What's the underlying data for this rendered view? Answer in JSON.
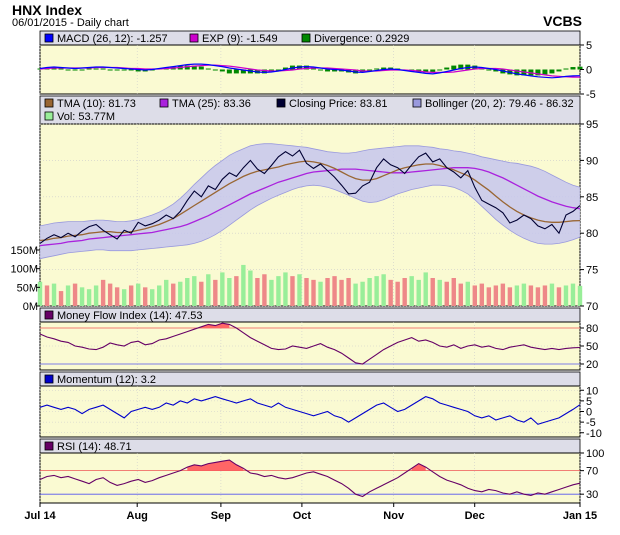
{
  "header": {
    "title": "HNX Index",
    "subtitle": "06/01/2015 - Daily chart",
    "source": "VCBS"
  },
  "colors": {
    "background": "#fafad2",
    "macd": "#0000ff",
    "exp": "#cc00cc",
    "divergence": "#008800",
    "tma10": "#996633",
    "tma25": "#aa22dd",
    "closing": "#000033",
    "bollinger_fill": "#c6c6ee",
    "bollinger_line": "#9999dd",
    "vol_up": "#99ee99",
    "vol_down": "#ee8888",
    "mfi": "#660066",
    "momentum": "#0000cc",
    "rsi": "#660066",
    "overbought_fill": "#ff6666",
    "oversold_fill": "#6666ff"
  },
  "chart_data": [
    {
      "type": "line",
      "id": "macd",
      "legend": [
        {
          "label": "MACD (26, 12): -1.257",
          "color": "#0000ff"
        },
        {
          "label": "EXP (9): -1.549",
          "color": "#cc00cc"
        },
        {
          "label": "Divergence: 0.2929",
          "color": "#008800"
        }
      ],
      "ylim": [
        -5,
        5
      ],
      "yticks": [
        "5",
        "0",
        "-5"
      ],
      "yticks_values": [
        5,
        0,
        -5
      ],
      "macd": [
        0.2,
        0.4,
        0.5,
        0.4,
        0.3,
        0.2,
        0.3,
        0.4,
        0.5,
        0.5,
        0.4,
        0.3,
        0.2,
        0.1,
        0.0,
        -0.1,
        0.0,
        0.2,
        0.4,
        0.6,
        0.8,
        1.0,
        1.1,
        1.1,
        1.0,
        0.8,
        0.6,
        0.3,
        0.1,
        -0.1,
        -0.3,
        -0.5,
        -0.6,
        -0.5,
        -0.3,
        0.0,
        0.3,
        0.5,
        0.6,
        0.5,
        0.3,
        0.1,
        0.0,
        -0.1,
        -0.3,
        -0.5,
        -0.6,
        -0.4,
        -0.2,
        0.0,
        0.1,
        0.0,
        -0.2,
        -0.4,
        -0.6,
        -0.8,
        -0.9,
        -0.7,
        -0.4,
        -0.1,
        0.2,
        0.4,
        0.5,
        0.4,
        0.2,
        0.0,
        -0.3,
        -0.6,
        -0.9,
        -1.1,
        -1.3,
        -1.5,
        -1.6,
        -1.7,
        -1.6,
        -1.4,
        -1.3,
        -1.26
      ],
      "exp": [
        0.1,
        0.2,
        0.3,
        0.3,
        0.3,
        0.3,
        0.3,
        0.3,
        0.4,
        0.4,
        0.4,
        0.4,
        0.3,
        0.2,
        0.2,
        0.1,
        0.1,
        0.1,
        0.2,
        0.3,
        0.4,
        0.6,
        0.7,
        0.8,
        0.9,
        0.9,
        0.8,
        0.7,
        0.5,
        0.3,
        0.1,
        -0.1,
        -0.2,
        -0.3,
        -0.3,
        -0.2,
        -0.1,
        0.1,
        0.2,
        0.3,
        0.3,
        0.3,
        0.2,
        0.1,
        0.0,
        -0.1,
        -0.3,
        -0.3,
        -0.3,
        -0.2,
        -0.1,
        -0.1,
        -0.1,
        -0.2,
        -0.3,
        -0.5,
        -0.6,
        -0.6,
        -0.6,
        -0.5,
        -0.3,
        -0.1,
        0.1,
        0.2,
        0.2,
        0.2,
        0.1,
        -0.1,
        -0.3,
        -0.5,
        -0.7,
        -0.9,
        -1.1,
        -1.3,
        -1.4,
        -1.5,
        -1.55,
        -1.549
      ]
    },
    {
      "type": "line",
      "id": "price",
      "legend": [
        {
          "label": "TMA (10): 81.73",
          "color": "#996633"
        },
        {
          "label": "TMA (25): 83.36",
          "color": "#aa22dd"
        },
        {
          "label": "Closing Price: 83.81",
          "color": "#000033"
        },
        {
          "label": "Bollinger (20, 2): 79.46 - 86.32",
          "color": "#9999dd"
        },
        {
          "label": "Vol: 53.77M",
          "color": "#99ee99"
        }
      ],
      "ylim": [
        70,
        95
      ],
      "yticks": [
        "95",
        "90",
        "85",
        "80",
        "75",
        "70"
      ],
      "yticks_values": [
        95,
        90,
        85,
        80,
        75,
        70
      ],
      "vol_ticks": [
        "150M",
        "100M",
        "50M",
        "0M"
      ],
      "vol_ticks_values": [
        150,
        100,
        50,
        0
      ],
      "vol_max": 150,
      "close": [
        78.6,
        79.3,
        79.8,
        79.4,
        80.0,
        79.5,
        80.3,
        80.9,
        81.2,
        80.4,
        79.8,
        79.2,
        80.4,
        80.0,
        81.5,
        81.0,
        81.3,
        81.8,
        82.5,
        82.0,
        83.0,
        84.5,
        85.8,
        85.0,
        86.5,
        86.0,
        87.4,
        88.3,
        87.8,
        89.0,
        90.0,
        88.8,
        88.2,
        89.3,
        90.5,
        91.2,
        90.6,
        91.4,
        89.6,
        88.9,
        89.5,
        88.6,
        87.7,
        86.6,
        85.4,
        85.5,
        86.5,
        87.0,
        89.0,
        90.2,
        89.4,
        89.0,
        88.2,
        89.4,
        90.5,
        91.0,
        89.8,
        90.2,
        89.0,
        88.4,
        87.6,
        88.6,
        86.3,
        84.5,
        84.0,
        83.5,
        82.8,
        81.4,
        81.8,
        82.5,
        82.0,
        81.0,
        80.6,
        81.2,
        80.0,
        82.5,
        83.0,
        83.81
      ],
      "tma10": [
        79.0,
        79.1,
        79.3,
        79.4,
        79.6,
        79.7,
        79.8,
        80.0,
        80.1,
        80.2,
        80.2,
        80.1,
        80.1,
        80.2,
        80.4,
        80.6,
        80.9,
        81.2,
        81.6,
        82.0,
        82.6,
        83.2,
        83.8,
        84.4,
        85.0,
        85.6,
        86.2,
        86.8,
        87.3,
        87.8,
        88.2,
        88.5,
        88.7,
        88.9,
        89.1,
        89.4,
        89.6,
        89.8,
        89.9,
        89.8,
        89.6,
        89.3,
        88.9,
        88.4,
        87.9,
        87.5,
        87.3,
        87.3,
        87.5,
        87.9,
        88.3,
        88.7,
        89.0,
        89.2,
        89.4,
        89.5,
        89.5,
        89.3,
        89.0,
        88.7,
        88.3,
        87.9,
        87.3,
        86.6,
        85.9,
        85.1,
        84.3,
        83.6,
        83.0,
        82.5,
        82.1,
        81.8,
        81.6,
        81.5,
        81.5,
        81.6,
        81.7,
        81.73
      ],
      "tma25": [
        78.3,
        78.4,
        78.5,
        78.6,
        78.8,
        78.9,
        79.0,
        79.2,
        79.3,
        79.4,
        79.5,
        79.6,
        79.7,
        79.8,
        79.9,
        80.0,
        80.1,
        80.3,
        80.5,
        80.7,
        80.9,
        81.2,
        81.6,
        82.0,
        82.4,
        82.9,
        83.4,
        83.9,
        84.4,
        84.9,
        85.4,
        85.8,
        86.2,
        86.6,
        87.0,
        87.3,
        87.6,
        87.9,
        88.2,
        88.4,
        88.5,
        88.6,
        88.7,
        88.8,
        88.8,
        88.8,
        88.7,
        88.6,
        88.5,
        88.4,
        88.3,
        88.3,
        88.3,
        88.4,
        88.5,
        88.6,
        88.7,
        88.8,
        88.9,
        89.0,
        89.0,
        89.0,
        88.9,
        88.7,
        88.4,
        88.0,
        87.6,
        87.1,
        86.6,
        86.1,
        85.6,
        85.1,
        84.7,
        84.3,
        84.0,
        83.7,
        83.5,
        83.36
      ],
      "boll_upper": [
        81.0,
        81.2,
        81.4,
        81.5,
        81.6,
        81.6,
        81.6,
        81.7,
        81.8,
        81.8,
        81.7,
        81.6,
        81.6,
        81.7,
        81.9,
        82.2,
        82.5,
        82.9,
        83.4,
        84.0,
        84.8,
        85.7,
        86.7,
        87.6,
        88.5,
        89.3,
        90.0,
        90.7,
        91.2,
        91.6,
        92.0,
        92.2,
        92.3,
        92.3,
        92.2,
        92.1,
        92.0,
        91.9,
        91.8,
        91.6,
        91.4,
        91.2,
        91.1,
        91.0,
        91.0,
        91.1,
        91.3,
        91.5,
        91.6,
        91.7,
        91.8,
        91.9,
        92.0,
        92.0,
        92.0,
        91.9,
        91.8,
        91.6,
        91.5,
        91.3,
        91.2,
        91.0,
        90.8,
        90.5,
        90.3,
        90.1,
        89.9,
        89.7,
        89.6,
        89.4,
        89.2,
        88.9,
        88.5,
        88.0,
        87.5,
        87.0,
        86.6,
        86.32
      ],
      "boll_lower": [
        76.5,
        76.7,
        76.9,
        77.1,
        77.3,
        77.4,
        77.5,
        77.6,
        77.7,
        77.7,
        77.6,
        77.6,
        77.6,
        77.6,
        77.7,
        77.8,
        77.9,
        78.0,
        78.1,
        78.2,
        78.3,
        78.4,
        78.6,
        78.9,
        79.3,
        79.8,
        80.4,
        81.1,
        81.8,
        82.5,
        83.2,
        83.8,
        84.3,
        84.8,
        85.2,
        85.6,
        86.0,
        86.3,
        86.5,
        86.6,
        86.5,
        86.3,
        86.0,
        85.6,
        85.2,
        84.8,
        84.4,
        84.2,
        84.3,
        84.6,
        85.0,
        85.4,
        85.7,
        86.0,
        86.2,
        86.4,
        86.6,
        86.6,
        86.5,
        86.3,
        85.9,
        85.4,
        84.6,
        83.7,
        82.8,
        81.9,
        81.1,
        80.4,
        79.8,
        79.3,
        78.9,
        78.6,
        78.5,
        78.5,
        78.6,
        78.8,
        79.1,
        79.46
      ],
      "volume": [
        65,
        55,
        60,
        40,
        55,
        60,
        50,
        45,
        55,
        70,
        60,
        50,
        45,
        55,
        60,
        50,
        45,
        55,
        70,
        60,
        65,
        75,
        80,
        65,
        85,
        70,
        90,
        75,
        80,
        110,
        95,
        75,
        85,
        70,
        80,
        90,
        80,
        85,
        75,
        70,
        65,
        75,
        80,
        70,
        75,
        60,
        65,
        75,
        80,
        85,
        70,
        65,
        75,
        80,
        70,
        90,
        75,
        70,
        65,
        75,
        60,
        65,
        55,
        60,
        50,
        55,
        60,
        50,
        55,
        60,
        55,
        50,
        55,
        60,
        50,
        55,
        60,
        54
      ],
      "vol_up": [
        true,
        false,
        true,
        false,
        true,
        false,
        true,
        true,
        true,
        false,
        false,
        false,
        true,
        false,
        true,
        false,
        true,
        true,
        true,
        false,
        true,
        true,
        true,
        false,
        true,
        false,
        true,
        true,
        false,
        true,
        true,
        false,
        false,
        true,
        true,
        true,
        false,
        true,
        false,
        false,
        true,
        false,
        false,
        false,
        false,
        true,
        true,
        true,
        true,
        true,
        false,
        false,
        false,
        true,
        true,
        true,
        false,
        true,
        false,
        false,
        false,
        true,
        false,
        false,
        false,
        false,
        false,
        false,
        true,
        true,
        false,
        false,
        false,
        true,
        false,
        true,
        true,
        true
      ]
    },
    {
      "type": "line",
      "id": "mfi",
      "legend": [
        {
          "label": "Money Flow Index (14): 47.53",
          "color": "#660066"
        }
      ],
      "ylim": [
        10,
        90
      ],
      "yticks": [
        "80",
        "50",
        "20"
      ],
      "yticks_values": [
        80,
        50,
        20
      ],
      "overbought": 80,
      "oversold": 20,
      "values": [
        70,
        65,
        62,
        58,
        56,
        50,
        48,
        45,
        44,
        48,
        55,
        52,
        50,
        56,
        58,
        52,
        54,
        60,
        62,
        66,
        70,
        74,
        78,
        82,
        86,
        84,
        88,
        86,
        80,
        72,
        64,
        58,
        52,
        46,
        44,
        45,
        50,
        48,
        46,
        50,
        54,
        48,
        44,
        38,
        30,
        22,
        20,
        28,
        36,
        44,
        50,
        56,
        60,
        64,
        58,
        60,
        56,
        50,
        48,
        52,
        46,
        50,
        52,
        48,
        50,
        46,
        44,
        48,
        50,
        52,
        48,
        46,
        44,
        46,
        44,
        46,
        47,
        47.53
      ]
    },
    {
      "type": "line",
      "id": "momentum",
      "legend": [
        {
          "label": "Momentum (12): 3.2",
          "color": "#0000cc"
        }
      ],
      "ylim": [
        -12,
        12
      ],
      "yticks": [
        "10",
        "5",
        "0",
        "-5",
        "-10"
      ],
      "yticks_values": [
        10,
        5,
        0,
        -5,
        -10
      ],
      "values": [
        2,
        3,
        2,
        1,
        2,
        1,
        -1,
        1,
        2,
        3,
        1,
        -1,
        -3,
        0,
        1,
        2,
        1,
        2,
        4,
        3,
        5,
        4,
        6,
        5,
        6,
        7,
        6,
        5,
        4,
        5,
        6,
        4,
        3,
        2,
        4,
        2,
        1,
        0,
        -1,
        -2,
        -1,
        0,
        -2,
        -3,
        -5,
        -3,
        -1,
        1,
        3,
        4,
        2,
        0,
        1,
        3,
        5,
        7,
        6,
        4,
        3,
        2,
        1,
        0,
        -2,
        -3,
        -2,
        -4,
        -3,
        -2,
        -4,
        -5,
        -3,
        -6,
        -5,
        -4,
        -3,
        -1,
        1,
        3.2
      ]
    },
    {
      "type": "line",
      "id": "rsi",
      "legend": [
        {
          "label": "RSI (14): 48.71",
          "color": "#660066"
        }
      ],
      "ylim": [
        15,
        100
      ],
      "yticks": [
        "100",
        "70",
        "30"
      ],
      "yticks_values": [
        100,
        70,
        30
      ],
      "overbought": 70,
      "oversold": 30,
      "values": [
        55,
        60,
        62,
        58,
        60,
        56,
        52,
        48,
        55,
        58,
        50,
        45,
        48,
        52,
        55,
        50,
        53,
        58,
        62,
        66,
        70,
        76,
        80,
        78,
        82,
        84,
        86,
        88,
        80,
        74,
        66,
        64,
        60,
        62,
        58,
        56,
        58,
        62,
        66,
        68,
        64,
        60,
        54,
        48,
        40,
        30,
        26,
        34,
        40,
        46,
        52,
        58,
        66,
        74,
        82,
        76,
        68,
        60,
        54,
        50,
        46,
        40,
        36,
        34,
        38,
        36,
        32,
        30,
        34,
        30,
        28,
        32,
        30,
        34,
        38,
        42,
        46,
        48.71
      ]
    }
  ],
  "x_axis": {
    "labels": [
      "Jul 14",
      "Aug",
      "Sep",
      "Oct",
      "Nov",
      "Dec",
      "Jan 15"
    ],
    "positions": [
      0,
      0.18,
      0.335,
      0.485,
      0.655,
      0.805,
      1.0
    ]
  }
}
